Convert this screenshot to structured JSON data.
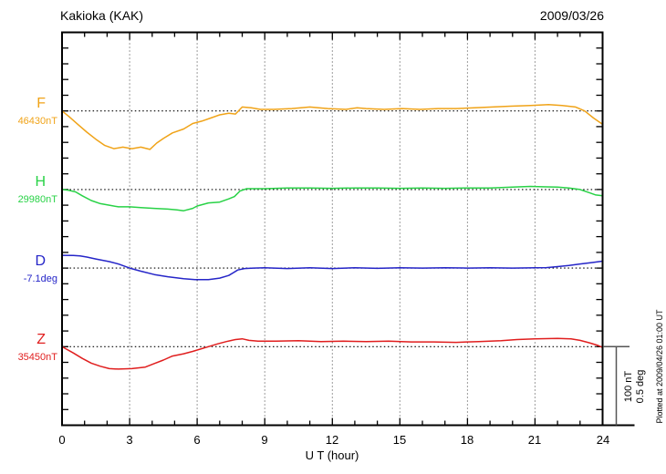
{
  "header": {
    "title": "Kakioka (KAK)",
    "date": "2009/03/26"
  },
  "x_axis": {
    "label": "U T (hour)",
    "tick_labels": [
      "0",
      "3",
      "6",
      "9",
      "12",
      "15",
      "18",
      "21",
      "24"
    ],
    "min": 0,
    "max": 24,
    "major_step": 3,
    "minor_step": 1
  },
  "scale_bar": {
    "line1": "100 nT",
    "line2": "0.5 deg"
  },
  "footer_note": "Plotted at 2009/04/26 01:00 UT",
  "chart_data": {
    "type": "line",
    "title": "Kakioka (KAK)",
    "date": "2009/03/26",
    "xlabel": "U T (hour)",
    "x_range": [
      0,
      24
    ],
    "grid": "dotted vertical lines every 3 h; dotted horizontal line at each channel baseline",
    "scale": {
      "nT_per_division": 100,
      "deg_per_division": 0.5
    },
    "series": [
      {
        "name": "F",
        "unit": "nT",
        "baseline_label": "46430nT",
        "baseline_value": 46430,
        "color": "#f0a318",
        "points": [
          [
            0,
            0
          ],
          [
            0.3,
            -7
          ],
          [
            0.7,
            -17
          ],
          [
            1.1,
            -27
          ],
          [
            1.5,
            -36
          ],
          [
            1.9,
            -44
          ],
          [
            2.3,
            -48
          ],
          [
            2.7,
            -46
          ],
          [
            3.1,
            -48
          ],
          [
            3.5,
            -46
          ],
          [
            3.9,
            -49
          ],
          [
            4.2,
            -41
          ],
          [
            4.5,
            -35
          ],
          [
            4.9,
            -28
          ],
          [
            5.4,
            -23
          ],
          [
            5.8,
            -16
          ],
          [
            6.2,
            -13
          ],
          [
            6.6,
            -9
          ],
          [
            7.0,
            -5
          ],
          [
            7.4,
            -3
          ],
          [
            7.7,
            -4
          ],
          [
            8.0,
            5
          ],
          [
            8.4,
            4
          ],
          [
            8.8,
            2
          ],
          [
            9.4,
            2
          ],
          [
            10.2,
            3
          ],
          [
            11.0,
            5
          ],
          [
            11.4,
            4
          ],
          [
            11.8,
            3
          ],
          [
            12.6,
            2
          ],
          [
            13.1,
            4
          ],
          [
            13.5,
            3
          ],
          [
            14.3,
            2
          ],
          [
            15.1,
            3
          ],
          [
            15.9,
            2
          ],
          [
            16.7,
            3
          ],
          [
            17.5,
            3
          ],
          [
            18.3,
            4
          ],
          [
            19.1,
            5
          ],
          [
            19.9,
            6
          ],
          [
            20.8,
            7
          ],
          [
            21.6,
            8
          ],
          [
            22.2,
            7
          ],
          [
            22.8,
            5
          ],
          [
            23.2,
            0
          ],
          [
            23.6,
            -9
          ],
          [
            24,
            -17
          ]
        ]
      },
      {
        "name": "H",
        "unit": "nT",
        "baseline_label": "29980nT",
        "baseline_value": 29980,
        "color": "#28d246",
        "points": [
          [
            0,
            0
          ],
          [
            0.3,
            -1
          ],
          [
            0.6,
            -3
          ],
          [
            0.9,
            -8
          ],
          [
            1.3,
            -14
          ],
          [
            1.7,
            -18
          ],
          [
            2.1,
            -20
          ],
          [
            2.5,
            -22
          ],
          [
            3.0,
            -22
          ],
          [
            3.5,
            -23
          ],
          [
            4.1,
            -24
          ],
          [
            4.7,
            -25
          ],
          [
            5.1,
            -26
          ],
          [
            5.4,
            -27
          ],
          [
            5.8,
            -24
          ],
          [
            6.0,
            -21
          ],
          [
            6.5,
            -17
          ],
          [
            7.0,
            -16
          ],
          [
            7.4,
            -12
          ],
          [
            7.65,
            -9
          ],
          [
            7.9,
            -2
          ],
          [
            8.2,
            1
          ],
          [
            9,
            1
          ],
          [
            10,
            2
          ],
          [
            11,
            2
          ],
          [
            12,
            1.5
          ],
          [
            13,
            2
          ],
          [
            14,
            2
          ],
          [
            15,
            1.5
          ],
          [
            16,
            2
          ],
          [
            17,
            1.5
          ],
          [
            18,
            2
          ],
          [
            19,
            2
          ],
          [
            20,
            3
          ],
          [
            20.8,
            4
          ],
          [
            21.3,
            3.5
          ],
          [
            22,
            3
          ],
          [
            22.5,
            2
          ],
          [
            23,
            0
          ],
          [
            23.4,
            -4
          ],
          [
            23.7,
            -7
          ],
          [
            24,
            -8
          ]
        ]
      },
      {
        "name": "D",
        "unit": "deg",
        "baseline_label": "-7.1deg",
        "baseline_value": -7.1,
        "color": "#2525c8",
        "points": [
          [
            0,
            0.081
          ],
          [
            0.5,
            0.08
          ],
          [
            0.8,
            0.078
          ],
          [
            1.1,
            0.07
          ],
          [
            1.5,
            0.058
          ],
          [
            2.1,
            0.041
          ],
          [
            2.5,
            0.026
          ],
          [
            3.0,
            0
          ],
          [
            3.5,
            -0.02
          ],
          [
            4.1,
            -0.041
          ],
          [
            4.7,
            -0.055
          ],
          [
            5.4,
            -0.067
          ],
          [
            5.9,
            -0.073
          ],
          [
            6.5,
            -0.073
          ],
          [
            7.0,
            -0.064
          ],
          [
            7.4,
            -0.047
          ],
          [
            7.8,
            -0.012
          ],
          [
            8.1,
            -0.003
          ],
          [
            8.5,
            0
          ],
          [
            9,
            0.002
          ],
          [
            10,
            -0.003
          ],
          [
            11,
            0.002
          ],
          [
            12,
            -0.003
          ],
          [
            13,
            0.002
          ],
          [
            14,
            -0.002
          ],
          [
            15,
            0.002
          ],
          [
            16,
            0
          ],
          [
            17,
            0.002
          ],
          [
            18,
            0
          ],
          [
            19,
            0.002
          ],
          [
            20,
            0
          ],
          [
            21,
            0.002
          ],
          [
            21.5,
            0.003
          ],
          [
            22,
            0.009
          ],
          [
            22.5,
            0.017
          ],
          [
            23,
            0.026
          ],
          [
            23.5,
            0.035
          ],
          [
            24,
            0.044
          ]
        ]
      },
      {
        "name": "Z",
        "unit": "nT",
        "baseline_label": "35450nT",
        "baseline_value": 35450,
        "color": "#e01e1e",
        "points": [
          [
            0,
            0
          ],
          [
            0.5,
            -8
          ],
          [
            0.9,
            -15
          ],
          [
            1.3,
            -21
          ],
          [
            1.7,
            -25
          ],
          [
            2.1,
            -28
          ],
          [
            2.5,
            -28.5
          ],
          [
            3.1,
            -28
          ],
          [
            3.7,
            -26
          ],
          [
            4.1,
            -21.5
          ],
          [
            4.5,
            -17
          ],
          [
            4.9,
            -12
          ],
          [
            5.4,
            -9
          ],
          [
            5.8,
            -6
          ],
          [
            6.2,
            -2.5
          ],
          [
            6.5,
            0
          ],
          [
            6.9,
            3.5
          ],
          [
            7.3,
            6.5
          ],
          [
            7.7,
            9
          ],
          [
            8.0,
            10
          ],
          [
            8.3,
            8
          ],
          [
            8.7,
            7
          ],
          [
            9.5,
            7
          ],
          [
            10.5,
            7.5
          ],
          [
            11.5,
            6.5
          ],
          [
            12.5,
            7
          ],
          [
            13.5,
            6.5
          ],
          [
            14.5,
            7
          ],
          [
            15.5,
            6
          ],
          [
            16.5,
            6
          ],
          [
            17.5,
            5.5
          ],
          [
            18.5,
            6.5
          ],
          [
            19.5,
            7.5
          ],
          [
            20.2,
            9
          ],
          [
            21,
            10
          ],
          [
            22,
            10.5
          ],
          [
            22.6,
            10
          ],
          [
            23,
            8
          ],
          [
            23.4,
            5
          ],
          [
            23.8,
            1.5
          ],
          [
            24,
            -1
          ]
        ]
      }
    ]
  }
}
